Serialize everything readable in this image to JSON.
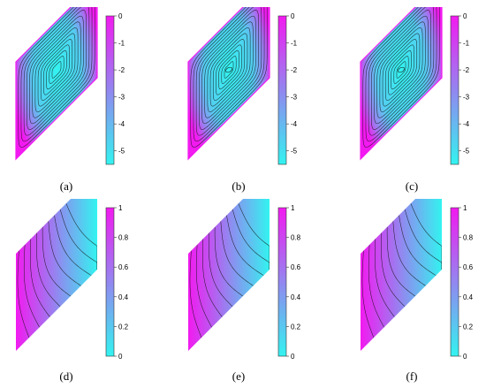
{
  "colors": {
    "low": "#33f3f0",
    "high": "#f21af0",
    "line": "#111111"
  },
  "panels": [
    {
      "id": "a",
      "caption": "(a)",
      "field": "streamfunction",
      "center": "single",
      "colorbar": {
        "min": -5.5,
        "max": 0,
        "ticks": [
          "0",
          "-1",
          "-2",
          "-3",
          "-4",
          "-5"
        ],
        "tick_values": [
          0,
          -1,
          -2,
          -3,
          -4,
          -5
        ]
      }
    },
    {
      "id": "b",
      "caption": "(b)",
      "field": "streamfunction",
      "center": "double",
      "colorbar": {
        "min": -5.5,
        "max": 0,
        "ticks": [
          "0",
          "-1",
          "-2",
          "-3",
          "-4",
          "-5"
        ],
        "tick_values": [
          0,
          -1,
          -2,
          -3,
          -4,
          -5
        ]
      }
    },
    {
      "id": "c",
      "caption": "(c)",
      "field": "streamfunction",
      "center": "double",
      "colorbar": {
        "min": -5.5,
        "max": 0,
        "ticks": [
          "0",
          "-1",
          "-2",
          "-3",
          "-4",
          "-5"
        ],
        "tick_values": [
          0,
          -1,
          -2,
          -3,
          -4,
          -5
        ]
      }
    },
    {
      "id": "d",
      "caption": "(d)",
      "field": "temperature",
      "colorbar": {
        "min": 0,
        "max": 1,
        "ticks": [
          "1",
          "0.8",
          "0.6",
          "0.4",
          "0.2",
          "0"
        ],
        "tick_values": [
          1,
          0.8,
          0.6,
          0.4,
          0.2,
          0
        ]
      }
    },
    {
      "id": "e",
      "caption": "(e)",
      "field": "temperature",
      "colorbar": {
        "min": 0,
        "max": 1,
        "ticks": [
          "1",
          "0.8",
          "0.6",
          "0.4",
          "0.2",
          "0"
        ],
        "tick_values": [
          1,
          0.8,
          0.6,
          0.4,
          0.2,
          0
        ]
      }
    },
    {
      "id": "f",
      "caption": "(f)",
      "field": "temperature",
      "colorbar": {
        "min": 0,
        "max": 1,
        "ticks": [
          "1",
          "0.8",
          "0.6",
          "0.4",
          "0.2",
          "0"
        ],
        "tick_values": [
          1,
          0.8,
          0.6,
          0.4,
          0.2,
          0
        ]
      }
    }
  ]
}
